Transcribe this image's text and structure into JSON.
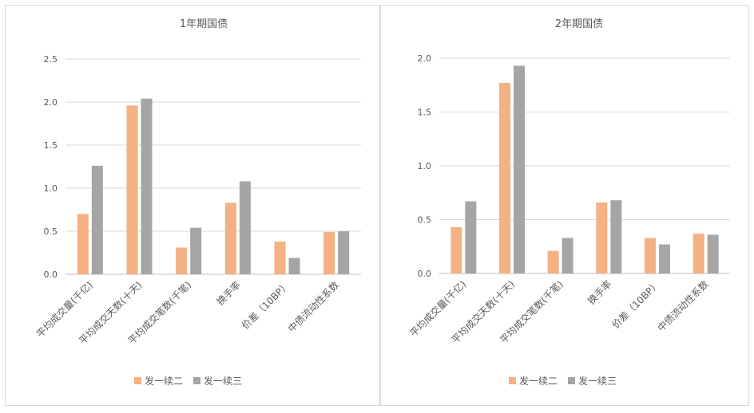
{
  "chart_data": [
    {
      "type": "bar",
      "title": "1年期国债",
      "categories": [
        "平均成交量(千亿)",
        "平均成交天数(十天)",
        "平均成交笔数(千笔)",
        "换手率",
        "价差（10BP）",
        "中债流动性系数"
      ],
      "series": [
        {
          "name": "发一续二",
          "values": [
            0.7,
            1.96,
            0.31,
            0.83,
            0.38,
            0.49
          ]
        },
        {
          "name": "发一续三",
          "values": [
            1.26,
            2.04,
            0.54,
            1.08,
            0.19,
            0.5
          ]
        }
      ],
      "ylim": [
        0,
        2.5
      ],
      "yticks": [
        "0.0",
        "0.5",
        "1.0",
        "1.5",
        "2.0",
        "2.5"
      ],
      "grid": true,
      "legend": "bottom",
      "colors": [
        "#f4b183",
        "#a5a5a5"
      ]
    },
    {
      "type": "bar",
      "title": "2年期国债",
      "categories": [
        "平均成交量(千亿)",
        "平均成交天数(十天)",
        "平均成交笔数(千笔)",
        "换手率",
        "价差（10BP）",
        "中债流动性系数"
      ],
      "series": [
        {
          "name": "发一续二",
          "values": [
            0.43,
            1.77,
            0.21,
            0.66,
            0.33,
            0.37
          ]
        },
        {
          "name": "发一续三",
          "values": [
            0.67,
            1.93,
            0.33,
            0.68,
            0.27,
            0.36
          ]
        }
      ],
      "ylim": [
        0,
        2.0
      ],
      "yticks": [
        "0.0",
        "0.5",
        "1.0",
        "1.5",
        "2.0"
      ],
      "grid": true,
      "legend": "bottom",
      "colors": [
        "#f4b183",
        "#a5a5a5"
      ]
    }
  ]
}
